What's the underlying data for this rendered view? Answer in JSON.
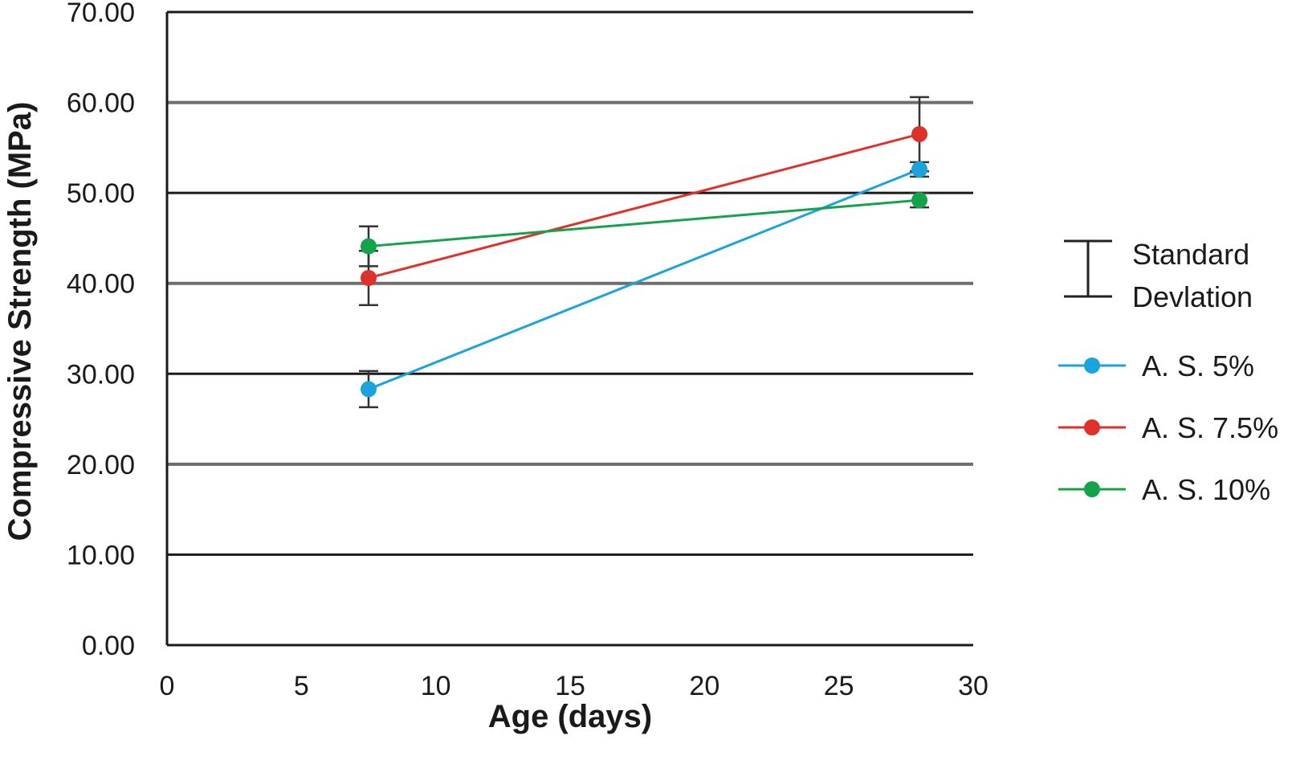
{
  "chart_data": {
    "type": "line",
    "xlabel": "Age (days)",
    "ylabel": "Compressive Strength (MPa)",
    "xlim": [
      0,
      30
    ],
    "ylim": [
      0,
      70
    ],
    "x_ticks": [
      "0",
      "5",
      "10",
      "15",
      "20",
      "25",
      "30"
    ],
    "y_ticks": [
      "0.00",
      "10.00",
      "20.00",
      "30.00",
      "40.00",
      "50.00",
      "60.00",
      "70.00"
    ],
    "grid": "horizontal",
    "legend": {
      "placement": "right",
      "error_bar_label": [
        "Standard",
        "Devlation"
      ]
    },
    "series": [
      {
        "name": "A. S. 5%",
        "color": "#1aa3dc",
        "points": [
          {
            "x": 7.5,
            "y": 28.3,
            "err": 2.0
          },
          {
            "x": 28,
            "y": 52.6,
            "err": 0.8
          }
        ]
      },
      {
        "name": "A. S. 7.5%",
        "color": "#e0302a",
        "points": [
          {
            "x": 7.5,
            "y": 40.6,
            "err": 3.0
          },
          {
            "x": 28,
            "y": 56.5,
            "err": 4.1
          }
        ]
      },
      {
        "name": "A. S. 10%",
        "color": "#14a34a",
        "points": [
          {
            "x": 7.5,
            "y": 44.1,
            "err": 2.2
          },
          {
            "x": 28,
            "y": 49.2,
            "err": 0.8
          }
        ]
      }
    ]
  }
}
